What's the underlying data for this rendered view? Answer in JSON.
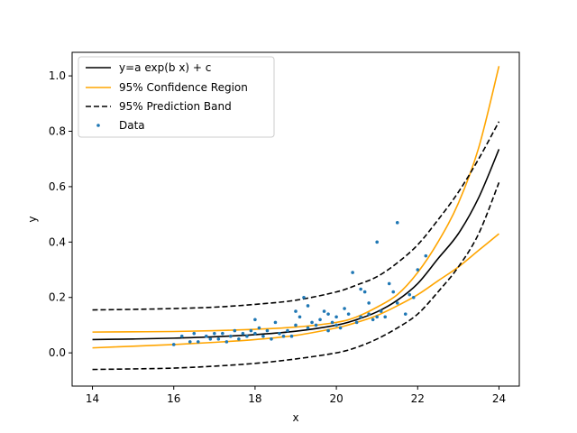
{
  "chart_data": {
    "type": "line",
    "title": "",
    "xlabel": "x",
    "ylabel": "y",
    "xlim": [
      13.5,
      24.5
    ],
    "ylim": [
      -0.12,
      1.085
    ],
    "x_ticks": [
      14,
      16,
      18,
      20,
      22,
      24
    ],
    "y_ticks": [
      0.0,
      0.2,
      0.4,
      0.6,
      0.8,
      1.0
    ],
    "x_tick_labels": [
      "14",
      "16",
      "18",
      "20",
      "22",
      "24"
    ],
    "y_tick_labels": [
      "0.0",
      "0.2",
      "0.4",
      "0.6",
      "0.8",
      "1.0"
    ],
    "grid": false,
    "legend_position": "upper-left",
    "colors": {
      "fit": "#000000",
      "confidence": "#ffa500",
      "prediction": "#000000",
      "data": "#1f77b4"
    },
    "series": [
      {
        "name": "y=a exp(b x) + c",
        "style": "solid",
        "color": "#000000",
        "x": [
          14,
          15,
          16,
          17,
          18,
          19,
          20,
          20.5,
          21,
          21.5,
          22,
          22.5,
          23,
          23.5,
          24
        ],
        "y": [
          0.048,
          0.05,
          0.053,
          0.058,
          0.066,
          0.078,
          0.1,
          0.12,
          0.148,
          0.19,
          0.25,
          0.34,
          0.43,
          0.56,
          0.735
        ]
      },
      {
        "name": "95% Confidence Region (upper)",
        "legend": "95% Confidence Region",
        "style": "solid",
        "color": "#ffa500",
        "x": [
          14,
          15,
          16,
          17,
          18,
          19,
          20,
          20.5,
          21,
          21.5,
          22,
          22.5,
          23,
          23.5,
          24
        ],
        "y": [
          0.075,
          0.076,
          0.077,
          0.08,
          0.085,
          0.093,
          0.11,
          0.13,
          0.165,
          0.21,
          0.29,
          0.4,
          0.54,
          0.74,
          1.035
        ]
      },
      {
        "name": "95% Confidence Region (lower)",
        "style": "solid",
        "color": "#ffa500",
        "x": [
          14,
          15,
          16,
          17,
          18,
          19,
          20,
          20.5,
          21,
          21.5,
          22,
          22.5,
          23,
          23.5,
          24
        ],
        "y": [
          0.018,
          0.024,
          0.03,
          0.038,
          0.048,
          0.063,
          0.09,
          0.11,
          0.135,
          0.17,
          0.21,
          0.26,
          0.31,
          0.37,
          0.43
        ]
      },
      {
        "name": "95% Prediction Band (upper)",
        "legend": "95% Prediction Band",
        "style": "dashed",
        "color": "#000000",
        "x": [
          14,
          15,
          16,
          17,
          18,
          19,
          20,
          20.5,
          21,
          21.5,
          22,
          22.5,
          23,
          23.5,
          24
        ],
        "y": [
          0.155,
          0.157,
          0.16,
          0.165,
          0.175,
          0.19,
          0.22,
          0.245,
          0.275,
          0.325,
          0.39,
          0.48,
          0.58,
          0.7,
          0.835
        ]
      },
      {
        "name": "95% Prediction Band (lower)",
        "style": "dashed",
        "color": "#000000",
        "x": [
          14,
          15,
          16,
          17,
          18,
          19,
          20,
          20.5,
          21,
          21.5,
          22,
          22.5,
          23,
          23.5,
          24
        ],
        "y": [
          -0.06,
          -0.058,
          -0.055,
          -0.048,
          -0.038,
          -0.022,
          0.0,
          0.02,
          0.05,
          0.09,
          0.14,
          0.22,
          0.31,
          0.43,
          0.615
        ]
      }
    ],
    "scatter": {
      "name": "Data",
      "color": "#1f77b4",
      "points": [
        [
          16.0,
          0.03
        ],
        [
          16.2,
          0.06
        ],
        [
          16.4,
          0.04
        ],
        [
          16.5,
          0.07
        ],
        [
          16.6,
          0.04
        ],
        [
          16.8,
          0.06
        ],
        [
          16.9,
          0.05
        ],
        [
          17.0,
          0.07
        ],
        [
          17.1,
          0.05
        ],
        [
          17.2,
          0.07
        ],
        [
          17.3,
          0.04
        ],
        [
          17.4,
          0.06
        ],
        [
          17.5,
          0.08
        ],
        [
          17.6,
          0.05
        ],
        [
          17.7,
          0.07
        ],
        [
          17.8,
          0.06
        ],
        [
          17.9,
          0.08
        ],
        [
          18.0,
          0.12
        ],
        [
          18.0,
          0.07
        ],
        [
          18.1,
          0.09
        ],
        [
          18.2,
          0.06
        ],
        [
          18.3,
          0.08
        ],
        [
          18.4,
          0.05
        ],
        [
          18.5,
          0.11
        ],
        [
          18.6,
          0.07
        ],
        [
          18.7,
          0.06
        ],
        [
          18.8,
          0.08
        ],
        [
          18.9,
          0.06
        ],
        [
          19.0,
          0.15
        ],
        [
          19.0,
          0.1
        ],
        [
          19.1,
          0.13
        ],
        [
          19.2,
          0.2
        ],
        [
          19.3,
          0.17
        ],
        [
          19.3,
          0.09
        ],
        [
          19.4,
          0.11
        ],
        [
          19.5,
          0.1
        ],
        [
          19.6,
          0.12
        ],
        [
          19.7,
          0.15
        ],
        [
          19.8,
          0.14
        ],
        [
          19.8,
          0.08
        ],
        [
          19.9,
          0.11
        ],
        [
          20.0,
          0.1
        ],
        [
          20.0,
          0.13
        ],
        [
          20.1,
          0.09
        ],
        [
          20.2,
          0.16
        ],
        [
          20.3,
          0.14
        ],
        [
          20.4,
          0.29
        ],
        [
          20.5,
          0.11
        ],
        [
          20.6,
          0.13
        ],
        [
          20.6,
          0.23
        ],
        [
          20.7,
          0.22
        ],
        [
          20.8,
          0.18
        ],
        [
          20.8,
          0.14
        ],
        [
          20.9,
          0.12
        ],
        [
          21.0,
          0.4
        ],
        [
          21.0,
          0.13
        ],
        [
          21.1,
          0.15
        ],
        [
          21.2,
          0.13
        ],
        [
          21.3,
          0.25
        ],
        [
          21.4,
          0.22
        ],
        [
          21.5,
          0.47
        ],
        [
          21.5,
          0.18
        ],
        [
          21.7,
          0.14
        ],
        [
          21.8,
          0.21
        ],
        [
          21.9,
          0.2
        ],
        [
          22.0,
          0.3
        ],
        [
          22.2,
          0.35
        ]
      ]
    }
  },
  "legend": {
    "items": [
      {
        "label": "y=a exp(b x) + c",
        "kind": "solid",
        "color": "#000000"
      },
      {
        "label": "95% Confidence Region",
        "kind": "solid",
        "color": "#ffa500"
      },
      {
        "label": "95% Prediction Band",
        "kind": "dashed",
        "color": "#000000"
      },
      {
        "label": "Data",
        "kind": "marker",
        "color": "#1f77b4"
      }
    ]
  }
}
